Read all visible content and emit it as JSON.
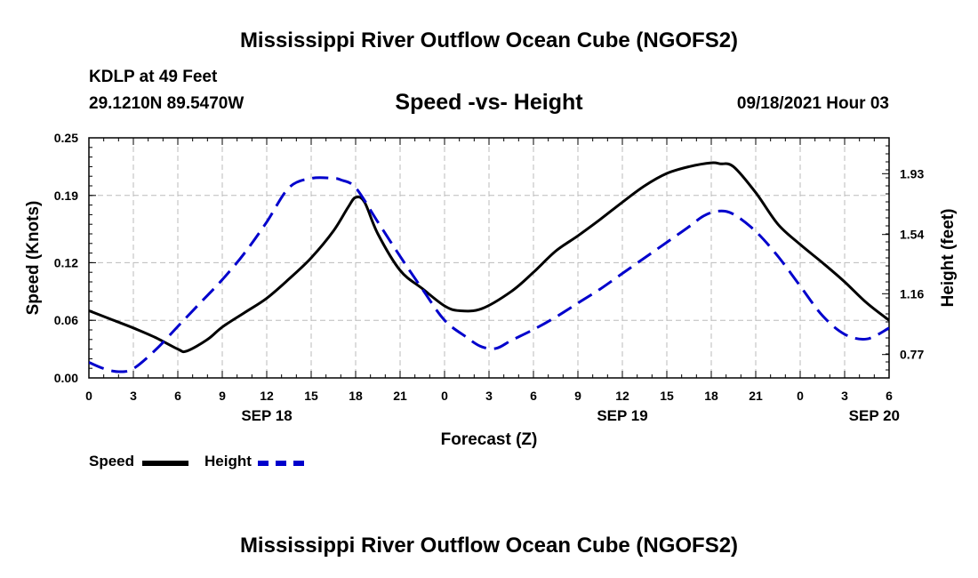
{
  "header": {
    "title": "Mississippi River Outflow Ocean Cube (NGOFS2)",
    "station": "KDLP at 49 Feet",
    "coords": "29.1210N  89.5470W",
    "subtitle": "Speed -vs- Height",
    "datetime": "09/18/2021 Hour 03"
  },
  "footer": {
    "title": "Mississippi River Outflow Ocean Cube (NGOFS2)"
  },
  "legend": {
    "speed_label": "Speed",
    "height_label": "Height",
    "speed_color": "#000000",
    "height_color": "#0000cc"
  },
  "chart_data": {
    "type": "line",
    "title": "Speed -vs- Height",
    "xlabel": "Forecast (Z)",
    "ylabel": "Speed (Knots)",
    "y2label": "Height (feet)",
    "xlim": [
      0,
      54
    ],
    "ylim": [
      0,
      0.25
    ],
    "y2lim": [
      0.62,
      2.16
    ],
    "x_ticks": [
      0,
      3,
      6,
      9,
      12,
      15,
      18,
      21,
      24,
      27,
      30,
      33,
      36,
      39,
      42,
      45,
      48,
      51,
      54
    ],
    "x_tick_labels": [
      "0",
      "3",
      "6",
      "9",
      "12",
      "15",
      "18",
      "21",
      "0",
      "3",
      "6",
      "9",
      "12",
      "15",
      "18",
      "21",
      "0",
      "3",
      "6"
    ],
    "date_labels": [
      {
        "x": 12,
        "label": "SEP 18"
      },
      {
        "x": 36,
        "label": "SEP 19"
      },
      {
        "x": 53,
        "label": "SEP 20"
      }
    ],
    "y_ticks": [
      0.0,
      0.06,
      0.12,
      0.19,
      0.25
    ],
    "y_tick_labels": [
      "0.00",
      "0.06",
      "0.12",
      "0.19",
      "0.25"
    ],
    "y2_ticks": [
      0.77,
      1.16,
      1.54,
      1.93
    ],
    "y2_tick_labels": [
      "0.77",
      "1.16",
      "1.54",
      "1.93"
    ],
    "grid": true,
    "series": [
      {
        "name": "Speed",
        "axis": "left",
        "style": "solid",
        "color": "#000000",
        "x": [
          0,
          1.5,
          3,
          4.5,
          6,
          6.6,
          8,
          9,
          10.5,
          12,
          13.5,
          15,
          16.5,
          17.5,
          18,
          18.6,
          19.5,
          21,
          22.5,
          24,
          25,
          26.5,
          28.5,
          30,
          31.5,
          33,
          34.5,
          36,
          37.5,
          39,
          40.5,
          42,
          42.6,
          43.5,
          45,
          46.5,
          48,
          49.5,
          51,
          52.5,
          54
        ],
        "y": [
          0.07,
          0.061,
          0.052,
          0.042,
          0.03,
          0.028,
          0.04,
          0.053,
          0.068,
          0.083,
          0.103,
          0.125,
          0.153,
          0.178,
          0.188,
          0.183,
          0.15,
          0.112,
          0.093,
          0.075,
          0.07,
          0.072,
          0.09,
          0.11,
          0.132,
          0.148,
          0.165,
          0.183,
          0.2,
          0.213,
          0.22,
          0.224,
          0.223,
          0.22,
          0.193,
          0.16,
          0.139,
          0.12,
          0.1,
          0.078,
          0.06
        ]
      },
      {
        "name": "Height",
        "axis": "right",
        "style": "dashed",
        "color": "#0000cc",
        "x": [
          0,
          1,
          2,
          3,
          4.5,
          6,
          7.5,
          9,
          10.5,
          12,
          13.5,
          15,
          16.5,
          17,
          18,
          19.5,
          21,
          22.5,
          24,
          25.5,
          26.5,
          27.5,
          28.5,
          30,
          31.5,
          33,
          34.5,
          36,
          37.5,
          39,
          40.5,
          41.5,
          42.5,
          43.5,
          45,
          46.5,
          48,
          49.5,
          51,
          52.5,
          54
        ],
        "y": [
          0.72,
          0.68,
          0.66,
          0.68,
          0.8,
          0.95,
          1.1,
          1.25,
          1.42,
          1.62,
          1.84,
          1.9,
          1.9,
          1.89,
          1.84,
          1.62,
          1.4,
          1.19,
          0.99,
          0.88,
          0.82,
          0.81,
          0.86,
          0.93,
          1.01,
          1.1,
          1.19,
          1.29,
          1.39,
          1.49,
          1.59,
          1.66,
          1.69,
          1.67,
          1.56,
          1.4,
          1.21,
          1.02,
          0.9,
          0.87,
          0.94
        ]
      }
    ]
  }
}
